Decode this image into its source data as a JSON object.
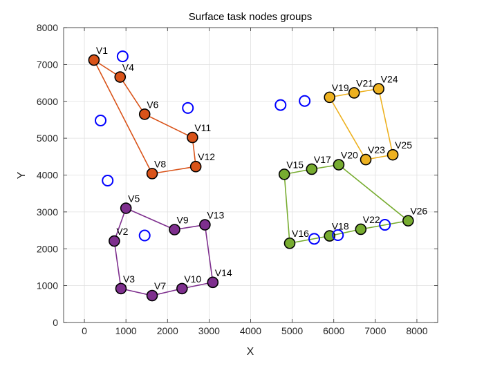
{
  "chart_data": {
    "type": "scatter",
    "title": "Surface task nodes groups",
    "xlabel": "X",
    "ylabel": "Y",
    "xlim": [
      -500,
      8500
    ],
    "ylim": [
      0,
      8000
    ],
    "xticks": [
      0,
      1000,
      2000,
      3000,
      4000,
      5000,
      6000,
      7000,
      8000
    ],
    "yticks": [
      0,
      1000,
      2000,
      3000,
      4000,
      5000,
      6000,
      7000,
      8000
    ],
    "grid": true,
    "legend": "none",
    "series": [
      {
        "color": "#D95319",
        "marker": "filled-circle",
        "closed": false,
        "points": [
          {
            "label": "V1",
            "x": 230,
            "y": 7120
          },
          {
            "label": "V4",
            "x": 860,
            "y": 6660
          },
          {
            "label": "V6",
            "x": 1450,
            "y": 5650
          },
          {
            "label": "V11",
            "x": 2600,
            "y": 5020
          },
          {
            "label": "V12",
            "x": 2680,
            "y": 4230
          },
          {
            "label": "V8",
            "x": 1630,
            "y": 4040
          },
          {
            "label": "V1",
            "x": 230,
            "y": 7120
          }
        ]
      },
      {
        "color": "#EDB120",
        "marker": "filled-circle",
        "closed": false,
        "points": [
          {
            "label": "V19",
            "x": 5900,
            "y": 6110
          },
          {
            "label": "V21",
            "x": 6490,
            "y": 6230
          },
          {
            "label": "V24",
            "x": 7080,
            "y": 6340
          },
          {
            "label": "V25",
            "x": 7420,
            "y": 4550
          },
          {
            "label": "V23",
            "x": 6770,
            "y": 4420
          },
          {
            "label": "V19",
            "x": 5900,
            "y": 6110
          }
        ]
      },
      {
        "color": "#7E2F8E",
        "marker": "filled-circle",
        "closed": false,
        "points": [
          {
            "label": "V5",
            "x": 1000,
            "y": 3100
          },
          {
            "label": "V9",
            "x": 2170,
            "y": 2520
          },
          {
            "label": "V13",
            "x": 2900,
            "y": 2650
          },
          {
            "label": "V14",
            "x": 3090,
            "y": 1090
          },
          {
            "label": "V10",
            "x": 2350,
            "y": 920
          },
          {
            "label": "V7",
            "x": 1630,
            "y": 730
          },
          {
            "label": "V3",
            "x": 880,
            "y": 920
          },
          {
            "label": "V2",
            "x": 720,
            "y": 2210
          },
          {
            "label": "V5",
            "x": 1000,
            "y": 3100
          }
        ]
      },
      {
        "color": "#77AC30",
        "marker": "filled-circle",
        "closed": false,
        "points": [
          {
            "label": "V15",
            "x": 4810,
            "y": 4020
          },
          {
            "label": "V17",
            "x": 5470,
            "y": 4160
          },
          {
            "label": "V20",
            "x": 6120,
            "y": 4280
          },
          {
            "label": "V26",
            "x": 7790,
            "y": 2760
          },
          {
            "label": "V22",
            "x": 6650,
            "y": 2530
          },
          {
            "label": "V18",
            "x": 5900,
            "y": 2350
          },
          {
            "label": "V16",
            "x": 4940,
            "y": 2150
          },
          {
            "label": "V15",
            "x": 4810,
            "y": 4020
          }
        ]
      },
      {
        "color": "#0000FF",
        "marker": "open-circle",
        "closed": false,
        "no_line": true,
        "points": [
          {
            "x": 920,
            "y": 7220
          },
          {
            "x": 390,
            "y": 5480
          },
          {
            "x": 2490,
            "y": 5820
          },
          {
            "x": 560,
            "y": 3850
          },
          {
            "x": 1450,
            "y": 2360
          },
          {
            "x": 4720,
            "y": 5900
          },
          {
            "x": 5300,
            "y": 6010
          },
          {
            "x": 5530,
            "y": 2270
          },
          {
            "x": 6100,
            "y": 2370
          },
          {
            "x": 7230,
            "y": 2650
          }
        ]
      }
    ]
  }
}
